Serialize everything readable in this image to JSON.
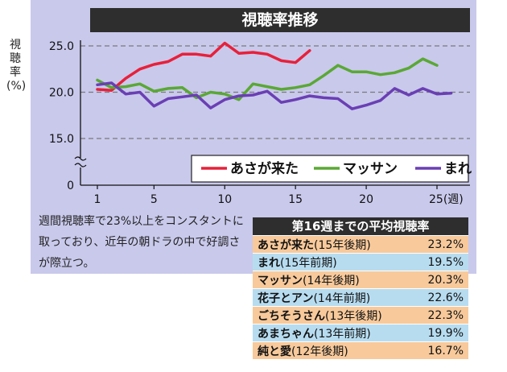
{
  "chart_data": {
    "type": "line",
    "title": "視聴率推移",
    "ylabel": "視聴率(%)",
    "x_tick_labels": [
      "1",
      "5",
      "10",
      "15",
      "20",
      "25(週)"
    ],
    "x_ticks": [
      1,
      5,
      10,
      15,
      20,
      25
    ],
    "y_tick_labels": [
      "25.0",
      "20.0",
      "15.0",
      "0"
    ],
    "y_ticks": [
      25,
      20,
      15,
      0
    ],
    "grid": true,
    "legend_position": "bottom-right",
    "series": [
      {
        "name": "あさが来た",
        "color": "#e8203a",
        "x": [
          1,
          2,
          3,
          4,
          5,
          6,
          7,
          8,
          9,
          10,
          11,
          12,
          13,
          14,
          15,
          16
        ],
        "values": [
          20.3,
          20.2,
          21.5,
          22.5,
          23.0,
          23.3,
          24.1,
          24.1,
          23.9,
          25.3,
          24.2,
          24.3,
          24.1,
          23.4,
          23.2,
          24.5
        ]
      },
      {
        "name": "マッサン",
        "color": "#5aa834",
        "x": [
          1,
          2,
          3,
          4,
          5,
          6,
          7,
          8,
          9,
          10,
          11,
          12,
          13,
          14,
          15,
          16,
          17,
          18,
          19,
          20,
          21,
          22,
          23,
          24,
          25,
          26
        ],
        "values": [
          21.3,
          20.5,
          20.6,
          20.9,
          20.1,
          20.4,
          20.5,
          19.4,
          20.0,
          19.8,
          19.2,
          20.9,
          20.6,
          20.3,
          20.5,
          20.8,
          21.8,
          22.9,
          22.2,
          22.2,
          21.9,
          22.1,
          22.6,
          23.6,
          22.9,
          null
        ]
      },
      {
        "name": "まれ",
        "color": "#6a3fb4",
        "x": [
          1,
          2,
          3,
          4,
          5,
          6,
          7,
          8,
          9,
          10,
          11,
          12,
          13,
          14,
          15,
          16,
          17,
          18,
          19,
          20,
          21,
          22,
          23,
          24,
          25,
          26
        ],
        "values": [
          20.8,
          21.0,
          19.8,
          20.0,
          18.5,
          19.3,
          19.5,
          19.7,
          18.3,
          19.2,
          19.6,
          19.7,
          20.1,
          18.9,
          19.2,
          19.6,
          19.4,
          19.3,
          18.2,
          18.6,
          19.1,
          20.4,
          19.7,
          20.4,
          19.8,
          19.9
        ]
      }
    ]
  },
  "note": "週間視聴率で23%以上をコンスタントに取っており、近年の朝ドラの中で好調さが際立つ。",
  "table": {
    "title": "第16週までの平均視聴率",
    "rows": [
      {
        "name": "あさが来た",
        "period": "(15年後期)",
        "value": "23.2%",
        "tone": "orange"
      },
      {
        "name": "まれ",
        "period": "(15年前期)",
        "value": "19.5%",
        "tone": "blue"
      },
      {
        "name": "マッサン",
        "period": "(14年後期)",
        "value": "20.3%",
        "tone": "orange"
      },
      {
        "name": "花子とアン",
        "period": "(14年前期)",
        "value": "22.6%",
        "tone": "blue"
      },
      {
        "name": "ごちそうさん",
        "period": "(13年後期)",
        "value": "22.3%",
        "tone": "orange"
      },
      {
        "name": "あまちゃん",
        "period": "(13年前期)",
        "value": "19.9%",
        "tone": "blue"
      },
      {
        "name": "純と愛",
        "period": "(12年後期)",
        "value": "16.7%",
        "tone": "orange"
      }
    ]
  }
}
